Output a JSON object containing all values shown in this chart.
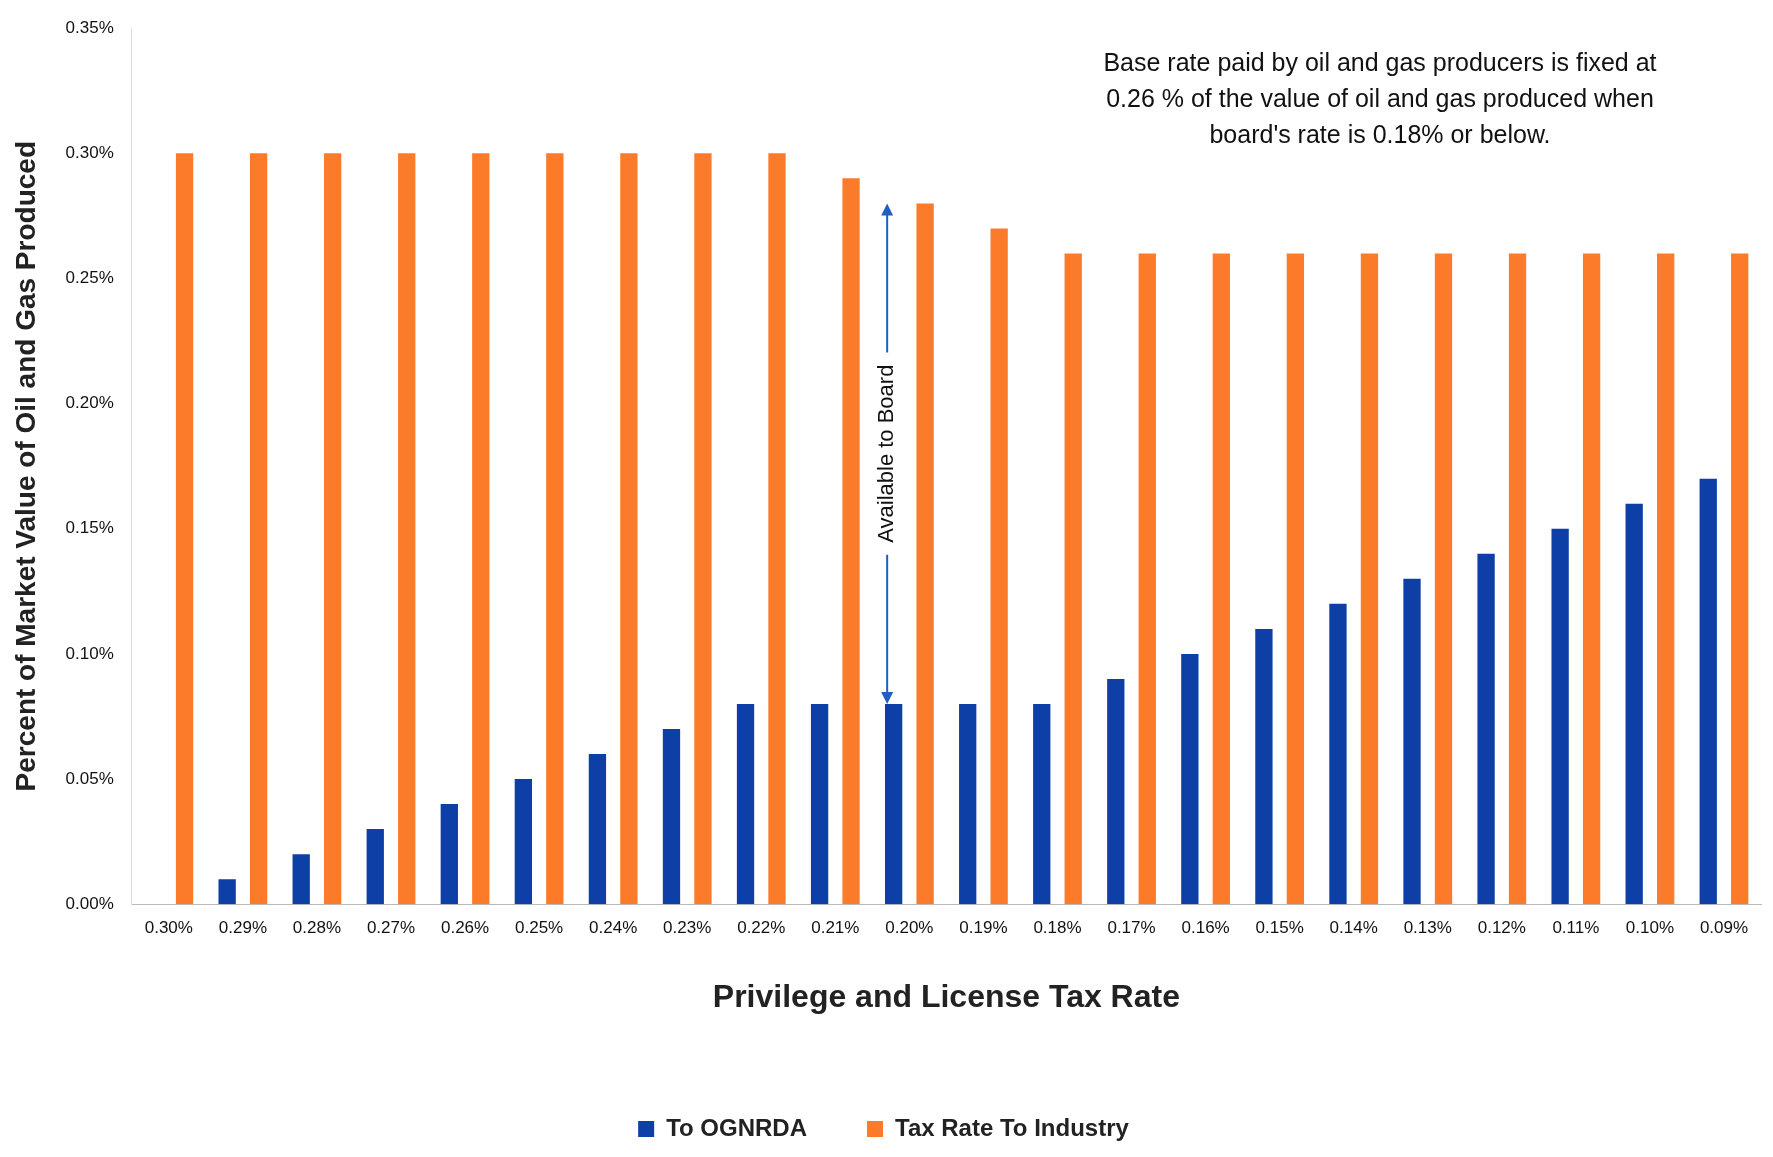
{
  "chart_data": {
    "type": "bar",
    "xlabel": "Privilege and License Tax Rate",
    "ylabel": "Percent of Market Value of Oil and Gas Produced",
    "categories": [
      "0.30%",
      "0.29%",
      "0.28%",
      "0.27%",
      "0.26%",
      "0.25%",
      "0.24%",
      "0.23%",
      "0.22%",
      "0.21%",
      "0.20%",
      "0.19%",
      "0.18%",
      "0.17%",
      "0.16%",
      "0.15%",
      "0.14%",
      "0.13%",
      "0.12%",
      "0.11%",
      "0.10%",
      "0.09%"
    ],
    "series": [
      {
        "name": "To OGNRDA",
        "color": "#0d3fa6",
        "values": [
          0,
          0.01,
          0.02,
          0.03,
          0.04,
          0.05,
          0.06,
          0.07,
          0.08,
          0.08,
          0.08,
          0.08,
          0.08,
          0.09,
          0.1,
          0.11,
          0.12,
          0.13,
          0.14,
          0.15,
          0.16,
          0.17
        ]
      },
      {
        "name": "Tax Rate To Industry",
        "color": "#fb7b2b",
        "values": [
          0.3,
          0.3,
          0.3,
          0.3,
          0.3,
          0.3,
          0.3,
          0.3,
          0.3,
          0.29,
          0.28,
          0.27,
          0.26,
          0.26,
          0.26,
          0.26,
          0.26,
          0.26,
          0.26,
          0.26,
          0.26,
          0.26
        ]
      }
    ],
    "ylim": [
      0,
      0.35
    ],
    "yticks": [
      {
        "value": 0,
        "label": "0.00%"
      },
      {
        "value": 0.05,
        "label": "0.05%"
      },
      {
        "value": 0.1,
        "label": "0.10%"
      },
      {
        "value": 0.15,
        "label": "0.15%"
      },
      {
        "value": 0.2,
        "label": "0.20%"
      },
      {
        "value": 0.25,
        "label": "0.25%"
      },
      {
        "value": 0.3,
        "label": "0.30%"
      },
      {
        "value": 0.35,
        "label": "0.35%"
      }
    ],
    "annotations": [
      "Base rate paid by oil and gas producers is fixed at 0.26 % of the value of oil and gas produced when board's rate is 0.18% or below.",
      "Available to Board"
    ],
    "grid": false,
    "legend": "bottom"
  }
}
